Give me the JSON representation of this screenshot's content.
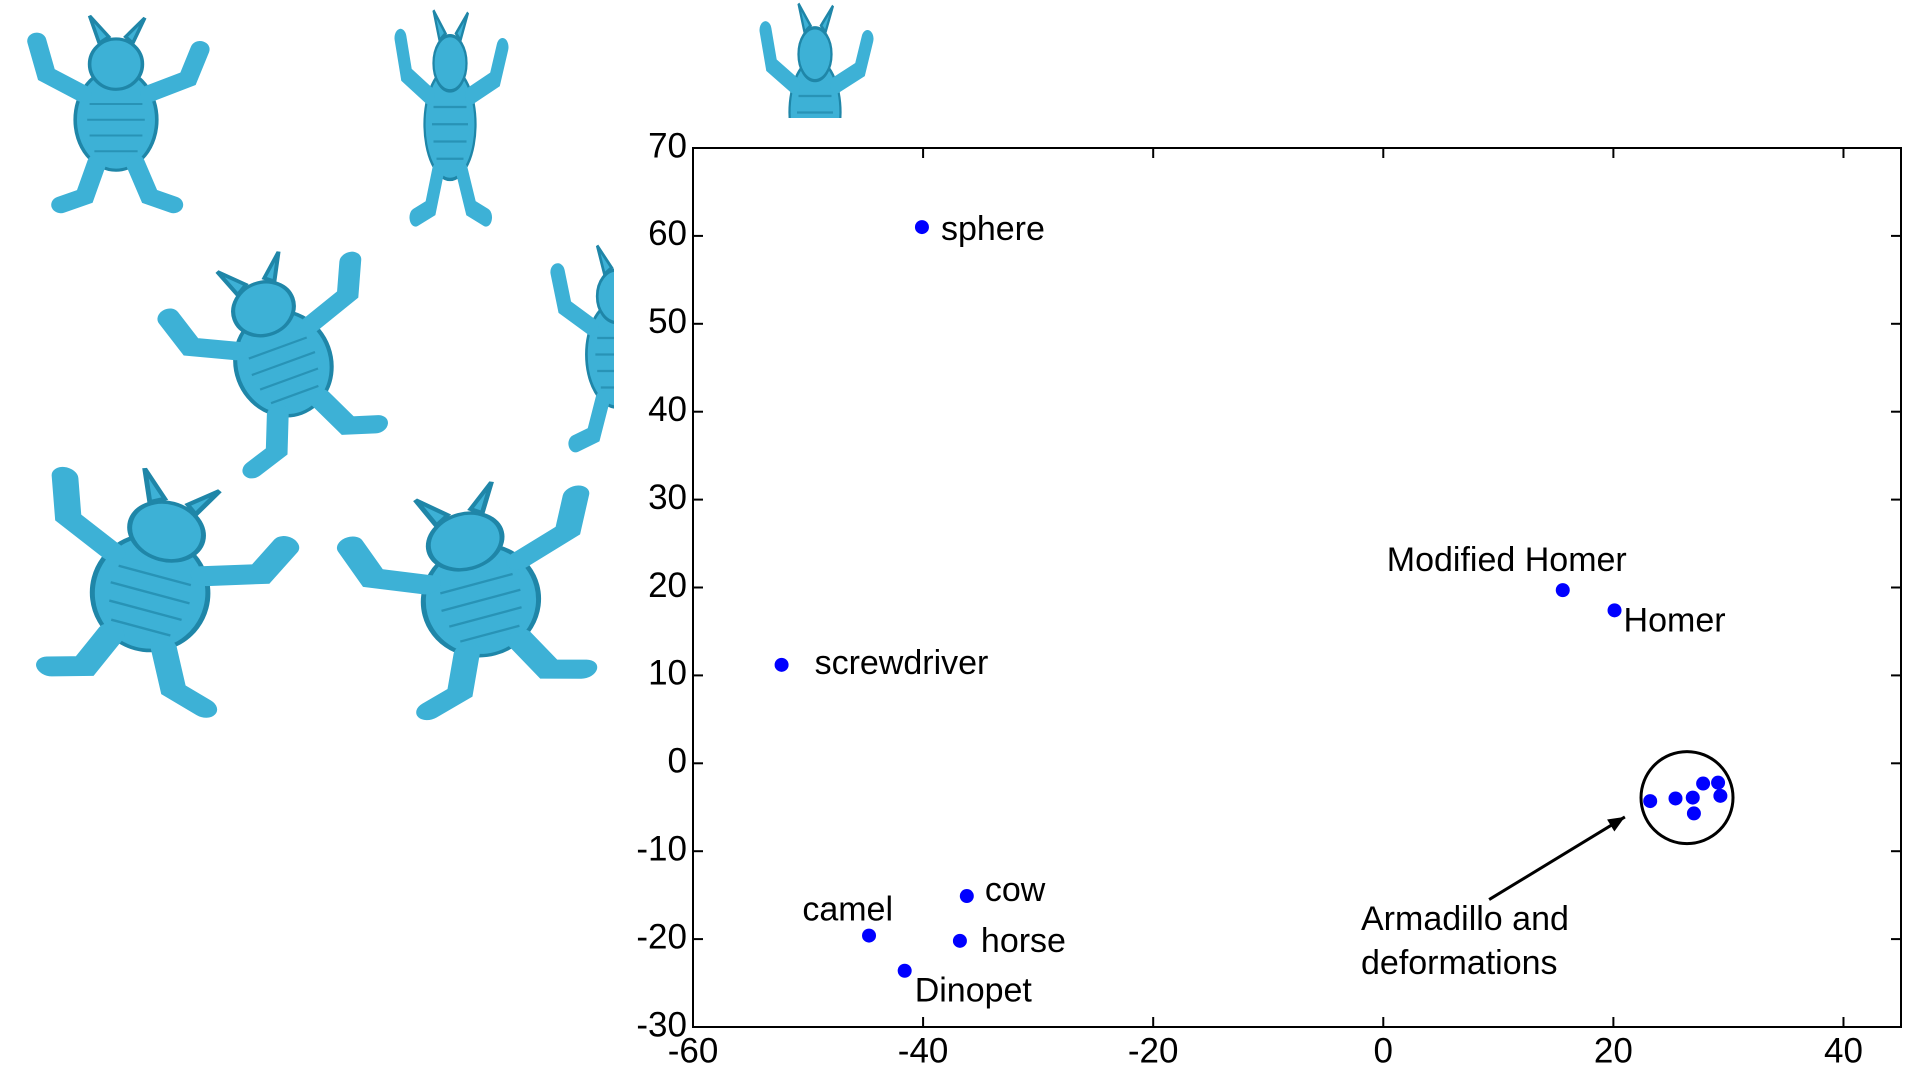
{
  "chart_data": {
    "type": "scatter",
    "x": [
      -40.1,
      -52.3,
      15.6,
      20.1,
      -36.2,
      -36.8,
      -44.7,
      -41.6,
      23.2,
      25.4,
      26.9,
      27.0,
      27.8,
      29.1,
      29.3
    ],
    "values": [
      61.0,
      11.2,
      19.7,
      17.4,
      -15.1,
      -20.2,
      -19.6,
      -23.6,
      -4.3,
      -4.0,
      -3.9,
      -5.7,
      -2.3,
      -2.2,
      -3.7
    ],
    "labels": [
      "sphere",
      "screwdriver",
      "Modified Homer",
      "Homer",
      "cow",
      "horse",
      "camel",
      "Dinopet",
      null,
      null,
      null,
      null,
      null,
      null,
      null
    ],
    "color": "#0000ff",
    "xlim": [
      -60,
      45
    ],
    "xticks": [
      -60,
      -40,
      -20,
      0,
      20,
      40
    ],
    "ylim": [
      -30,
      70
    ],
    "yticks": [
      -30,
      -20,
      -10,
      0,
      10,
      20,
      30,
      40,
      50,
      60,
      70
    ],
    "annotation": {
      "text": [
        "Armadillo and",
        "deformations"
      ]
    }
  }
}
